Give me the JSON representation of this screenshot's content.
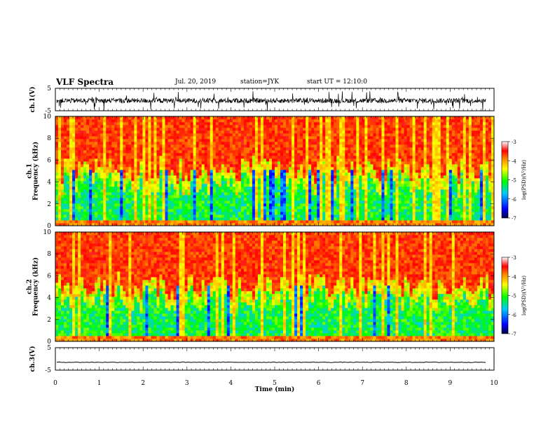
{
  "header": {
    "title": "VLF Spectra",
    "date": "Jul. 20, 2019",
    "station": "station=JYK",
    "start": "start UT = 12:10:0"
  },
  "colorbar": {
    "label": "log(PSD)(V²/Hz)",
    "ticks": [
      "-3",
      "-4",
      "-5",
      "-6",
      "-7"
    ],
    "range": [
      -7,
      -3
    ]
  },
  "chart_data": [
    {
      "type": "line",
      "panel": "ch1-waveform",
      "ylabel": "ch.1(V)",
      "ylim": [
        -5,
        5
      ],
      "yticks": [
        "5",
        "-5"
      ],
      "x": [
        0,
        10
      ],
      "values": [
        -0.5,
        -0.5
      ]
    },
    {
      "type": "heatmap",
      "panel": "ch1-spectrogram",
      "ylabel": "ch.1\nFrequency (kHz)",
      "ylim": [
        0,
        10
      ],
      "yticks": [
        "0",
        "2",
        "4",
        "6",
        "8",
        "10"
      ],
      "xlim": [
        0,
        10
      ],
      "zlim": [
        -7,
        -3
      ]
    },
    {
      "type": "heatmap",
      "panel": "ch2-spectrogram",
      "ylabel": "ch.2\nFrequency (kHz)",
      "ylim": [
        0,
        10
      ],
      "yticks": [
        "0",
        "2",
        "4",
        "6",
        "8",
        "10"
      ],
      "xlim": [
        0,
        10
      ],
      "zlim": [
        -7,
        -3
      ]
    },
    {
      "type": "line",
      "panel": "ch3-waveform",
      "ylabel": "ch.3(V)",
      "ylim": [
        -5,
        5
      ],
      "yticks": [
        "5",
        "-5"
      ],
      "x": [
        0,
        10
      ],
      "values": [
        -1.5,
        -1.5
      ]
    }
  ],
  "xaxis": {
    "label": "Time (min)",
    "ticks": [
      "0",
      "1",
      "2",
      "3",
      "4",
      "5",
      "6",
      "7",
      "8",
      "9",
      "10"
    ],
    "range": [
      0,
      10
    ]
  }
}
